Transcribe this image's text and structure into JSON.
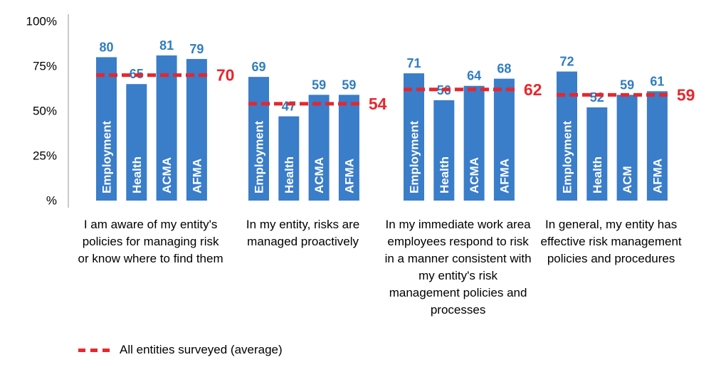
{
  "chart_data": {
    "type": "bar",
    "y_ticks": [
      "100%",
      "75%",
      "50%",
      "25%",
      "%"
    ],
    "ylim": [
      0,
      100
    ],
    "groups": [
      {
        "label": "I am aware of my entity's policies for managing risk or know where to find them",
        "bars": [
          {
            "name": "Employment",
            "value": 80
          },
          {
            "name": "Health",
            "value": 65
          },
          {
            "name": "ACMA",
            "value": 81
          },
          {
            "name": "AFMA",
            "value": 79
          }
        ],
        "average": 70
      },
      {
        "label": "In my entity, risks are managed proactively",
        "bars": [
          {
            "name": "Employment",
            "value": 69
          },
          {
            "name": "Health",
            "value": 47
          },
          {
            "name": "ACMA",
            "value": 59
          },
          {
            "name": "AFMA",
            "value": 59
          }
        ],
        "average": 54
      },
      {
        "label": "In my immediate work area employees respond to risk in a manner consistent with my entity's risk management policies and processes",
        "bars": [
          {
            "name": "Employment",
            "value": 71
          },
          {
            "name": "Health",
            "value": 56
          },
          {
            "name": "ACMA",
            "value": 64
          },
          {
            "name": "AFMA",
            "value": 68
          }
        ],
        "average": 62
      },
      {
        "label": "In general, my entity has effective risk management policies and procedures",
        "bars": [
          {
            "name": "Employment",
            "value": 72
          },
          {
            "name": "Health",
            "value": 52
          },
          {
            "name": "ACM",
            "value": 59
          },
          {
            "name": "AFMA",
            "value": 61
          }
        ],
        "average": 59
      }
    ],
    "legend": {
      "label": "All entities surveyed (average)",
      "position": "bottom-left"
    },
    "colors": {
      "bar": "#3a7dc9",
      "average_line": "#e8262c",
      "value_label": "#2f7dc1"
    },
    "grid": false
  }
}
